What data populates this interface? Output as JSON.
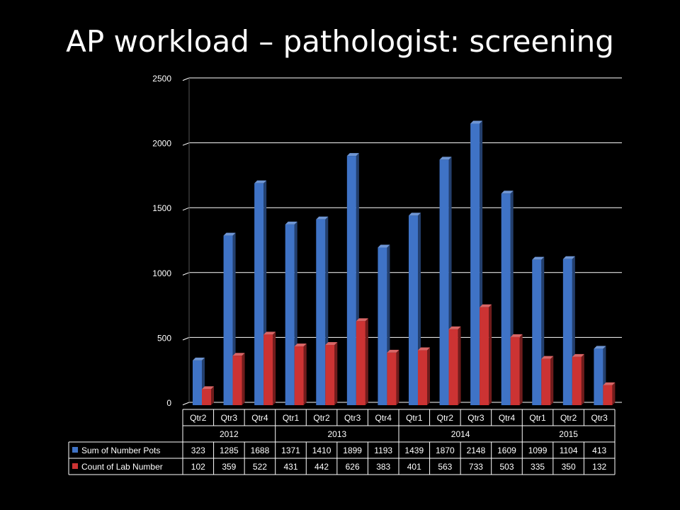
{
  "slide": {
    "title": "AP workload – pathologist: screening"
  },
  "chart_data": {
    "type": "bar",
    "title": "AP workload – pathologist: screening",
    "xlabel": "",
    "ylabel": "",
    "ylim": [
      0,
      2500
    ],
    "yticks": [
      0,
      500,
      1000,
      1500,
      2000,
      2500
    ],
    "grid": true,
    "legend": "in data table, left",
    "groups": [
      {
        "year": "2012",
        "quarters": [
          "Qtr2",
          "Qtr3",
          "Qtr4"
        ]
      },
      {
        "year": "2013",
        "quarters": [
          "Qtr1",
          "Qtr2",
          "Qtr3",
          "Qtr4"
        ]
      },
      {
        "year": "2014",
        "quarters": [
          "Qtr1",
          "Qtr2",
          "Qtr3",
          "Qtr4"
        ]
      },
      {
        "year": "2015",
        "quarters": [
          "Qtr1",
          "Qtr2",
          "Qtr3"
        ]
      }
    ],
    "series": [
      {
        "name": "Sum of Number Pots",
        "color": "#3f73c6",
        "values": [
          323,
          1285,
          1688,
          1371,
          1410,
          1899,
          1193,
          1439,
          1870,
          2148,
          1609,
          1099,
          1104,
          413
        ]
      },
      {
        "name": "Count of Lab Number",
        "color": "#cc3333",
        "values": [
          102,
          359,
          522,
          431,
          442,
          626,
          383,
          401,
          563,
          733,
          503,
          335,
          350,
          132
        ]
      }
    ]
  }
}
